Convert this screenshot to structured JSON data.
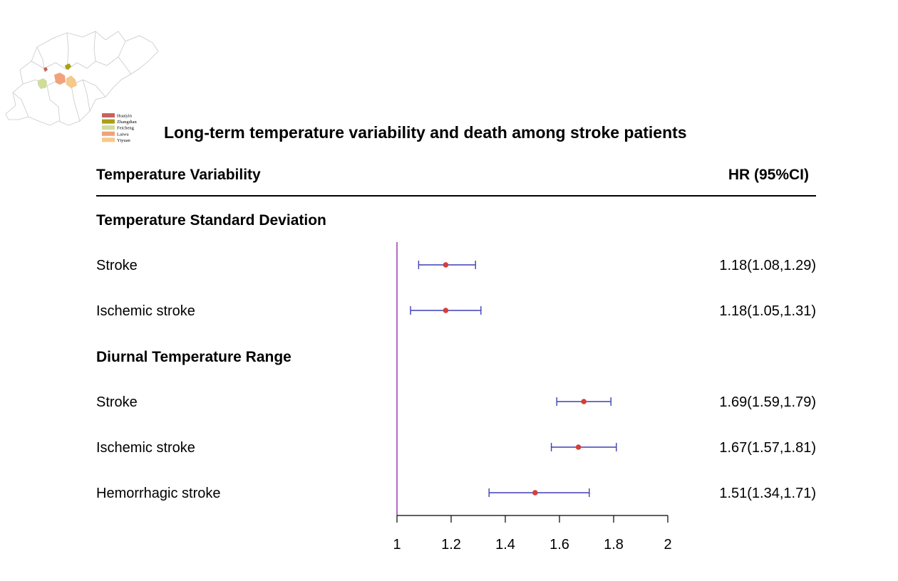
{
  "chart_data": {
    "type": "forest",
    "title": "Long-term temperature variability and death among stroke patients",
    "column_headers": {
      "left": "Temperature Variability",
      "right": "HR (95%CI)"
    },
    "groups": [
      {
        "label": "Temperature Standard Deviation",
        "rows": [
          {
            "label": "Stroke",
            "hr": 1.18,
            "lower": 1.08,
            "upper": 1.29,
            "text": "1.18(1.08,1.29)"
          },
          {
            "label": "Ischemic stroke",
            "hr": 1.18,
            "lower": 1.05,
            "upper": 1.31,
            "text": "1.18(1.05,1.31)"
          }
        ]
      },
      {
        "label": "Diurnal Temperature Range",
        "rows": [
          {
            "label": "Stroke",
            "hr": 1.69,
            "lower": 1.59,
            "upper": 1.79,
            "text": "1.69(1.59,1.79)"
          },
          {
            "label": "Ischemic stroke",
            "hr": 1.67,
            "lower": 1.57,
            "upper": 1.81,
            "text": "1.67(1.57,1.81)"
          },
          {
            "label": "Hemorrhagic stroke",
            "hr": 1.51,
            "lower": 1.34,
            "upper": 1.71,
            "text": "1.51(1.34,1.71)"
          }
        ]
      }
    ],
    "x_axis": {
      "range": [
        1,
        2
      ],
      "ticks": [
        1,
        1.2,
        1.4,
        1.6,
        1.8,
        2
      ],
      "tick_labels": [
        "1",
        "1.2",
        "1.4",
        "1.6",
        "1.8",
        "2"
      ],
      "reference_line": 1
    },
    "colors": {
      "point": "#d43f3a",
      "ci_line": "#3f3fb5",
      "reference_line": "#a04ab0",
      "axis": "#000000"
    }
  },
  "inset_map": {
    "legend": [
      {
        "label": "Huaiyin",
        "color": "#c9625e"
      },
      {
        "label": "Zhangdian",
        "color": "#a8a015"
      },
      {
        "label": "Feicheng",
        "color": "#cfdc9a"
      },
      {
        "label": "Laiwu",
        "color": "#f0a27c"
      },
      {
        "label": "Yiyuan",
        "color": "#f5c98a"
      }
    ]
  }
}
